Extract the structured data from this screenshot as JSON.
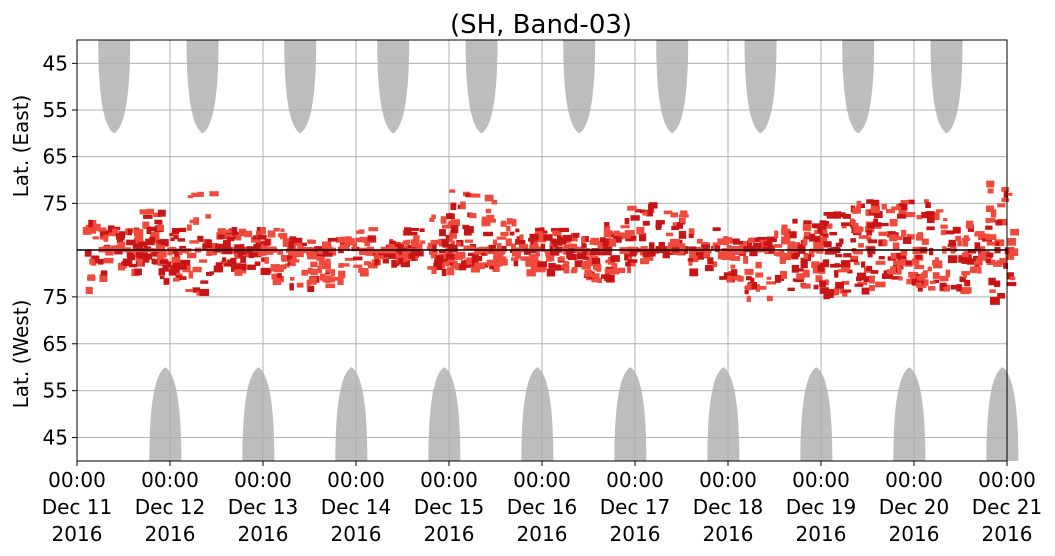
{
  "chart_data": {
    "type": "heatmap",
    "title": "(SH, Band-03)",
    "ylabel_upper": "Lat. (East)",
    "ylabel_lower": "Lat. (West)",
    "x_ticks": [
      {
        "time": "00:00",
        "date": "Dec 11",
        "year": "2016"
      },
      {
        "time": "00:00",
        "date": "Dec 12",
        "year": "2016"
      },
      {
        "time": "00:00",
        "date": "Dec 13",
        "year": "2016"
      },
      {
        "time": "00:00",
        "date": "Dec 14",
        "year": "2016"
      },
      {
        "time": "00:00",
        "date": "Dec 15",
        "year": "2016"
      },
      {
        "time": "00:00",
        "date": "Dec 16",
        "year": "2016"
      },
      {
        "time": "00:00",
        "date": "Dec 17",
        "year": "2016"
      },
      {
        "time": "00:00",
        "date": "Dec 18",
        "year": "2016"
      },
      {
        "time": "00:00",
        "date": "Dec 19",
        "year": "2016"
      },
      {
        "time": "00:00",
        "date": "Dec 20",
        "year": "2016"
      },
      {
        "time": "00:00",
        "date": "Dec 21",
        "year": "2016"
      }
    ],
    "x_range": [
      "2016-12-11T00:00",
      "2016-12-21T00:00"
    ],
    "y_upper_range_lat": [
      85,
      40
    ],
    "y_lower_range_lat": [
      85,
      40
    ],
    "y_ticks_upper": [
      "45",
      "55",
      "65",
      "75"
    ],
    "y_ticks_lower": [
      "75",
      "65",
      "55",
      "45"
    ],
    "grid": true,
    "equator_line": true,
    "colors": {
      "daylight": "#bdbdbd",
      "detection_light": "#f04a3c",
      "detection_dark": "#c81414",
      "grid": "#b0b0b0",
      "axis": "#000000"
    },
    "daylight_east_days": [
      0.4,
      1.35,
      2.4,
      3.4,
      4.35,
      5.4,
      6.4,
      7.35,
      8.4,
      9.35
    ],
    "daylight_west_days": [
      0.95,
      1.95,
      2.95,
      3.95,
      4.95,
      5.95,
      6.95,
      7.95,
      8.95,
      9.95
    ],
    "detection_clusters": [
      {
        "day": 0.2,
        "lat_east": 78,
        "lat_west": 76,
        "intensity": 0.6
      },
      {
        "day": 0.5,
        "lat_east": 80,
        "lat_west": 80,
        "intensity": 0.9
      },
      {
        "day": 0.75,
        "lat_east": 76,
        "lat_west": 82,
        "intensity": 0.9
      },
      {
        "day": 1.0,
        "lat_east": 80,
        "lat_west": 78,
        "intensity": 0.8
      },
      {
        "day": 1.3,
        "lat_east": 72,
        "lat_west": 75,
        "intensity": 0.5
      },
      {
        "day": 1.6,
        "lat_east": 80,
        "lat_west": 80,
        "intensity": 0.9
      },
      {
        "day": 1.85,
        "lat_east": 80,
        "lat_west": 80,
        "intensity": 0.8
      },
      {
        "day": 2.15,
        "lat_east": 80,
        "lat_west": 78,
        "intensity": 0.6
      },
      {
        "day": 2.4,
        "lat_east": 82,
        "lat_west": 77,
        "intensity": 0.5
      },
      {
        "day": 2.6,
        "lat_east": 84,
        "lat_west": 76,
        "intensity": 0.4
      },
      {
        "day": 2.75,
        "lat_east": 82,
        "lat_west": 78,
        "intensity": 0.3
      },
      {
        "day": 3.0,
        "lat_east": 80,
        "lat_west": 80,
        "intensity": 0.4
      },
      {
        "day": 3.3,
        "lat_east": 82,
        "lat_west": 82,
        "intensity": 0.6
      },
      {
        "day": 3.55,
        "lat_east": 80,
        "lat_west": 82,
        "intensity": 0.7
      },
      {
        "day": 3.9,
        "lat_east": 77,
        "lat_west": 80,
        "intensity": 0.7
      },
      {
        "day": 4.1,
        "lat_east": 72,
        "lat_west": 80,
        "intensity": 0.8
      },
      {
        "day": 4.35,
        "lat_east": 72,
        "lat_west": 81,
        "intensity": 0.6
      },
      {
        "day": 4.6,
        "lat_east": 78,
        "lat_west": 82,
        "intensity": 0.5
      },
      {
        "day": 4.85,
        "lat_east": 80,
        "lat_west": 80,
        "intensity": 0.4
      },
      {
        "day": 5.0,
        "lat_east": 80,
        "lat_west": 80,
        "intensity": 0.8
      },
      {
        "day": 5.25,
        "lat_east": 80,
        "lat_west": 80,
        "intensity": 0.8
      },
      {
        "day": 5.55,
        "lat_east": 82,
        "lat_west": 78,
        "intensity": 0.9
      },
      {
        "day": 5.8,
        "lat_east": 78,
        "lat_west": 80,
        "intensity": 0.6
      },
      {
        "day": 6.05,
        "lat_east": 74,
        "lat_west": 82,
        "intensity": 0.7
      },
      {
        "day": 6.35,
        "lat_east": 76,
        "lat_west": 84,
        "intensity": 0.6
      },
      {
        "day": 6.7,
        "lat_east": 80,
        "lat_west": 80,
        "intensity": 0.5
      },
      {
        "day": 7.0,
        "lat_east": 82,
        "lat_west": 78,
        "intensity": 0.7
      },
      {
        "day": 7.3,
        "lat_east": 82,
        "lat_west": 74,
        "intensity": 0.8
      },
      {
        "day": 7.6,
        "lat_east": 78,
        "lat_west": 76,
        "intensity": 0.6
      },
      {
        "day": 7.85,
        "lat_east": 78,
        "lat_west": 76,
        "intensity": 0.8
      },
      {
        "day": 8.1,
        "lat_east": 76,
        "lat_west": 74,
        "intensity": 0.9
      },
      {
        "day": 8.35,
        "lat_east": 74,
        "lat_west": 76,
        "intensity": 0.7
      },
      {
        "day": 8.6,
        "lat_east": 74,
        "lat_west": 76,
        "intensity": 0.8
      },
      {
        "day": 8.85,
        "lat_east": 72,
        "lat_west": 78,
        "intensity": 0.6
      },
      {
        "day": 9.1,
        "lat_east": 74,
        "lat_west": 76,
        "intensity": 0.7
      },
      {
        "day": 9.4,
        "lat_east": 78,
        "lat_west": 76,
        "intensity": 0.6
      },
      {
        "day": 9.65,
        "lat_east": 78,
        "lat_west": 80,
        "intensity": 0.6
      },
      {
        "day": 9.9,
        "lat_east": 70,
        "lat_west": 74,
        "intensity": 0.7
      }
    ]
  }
}
